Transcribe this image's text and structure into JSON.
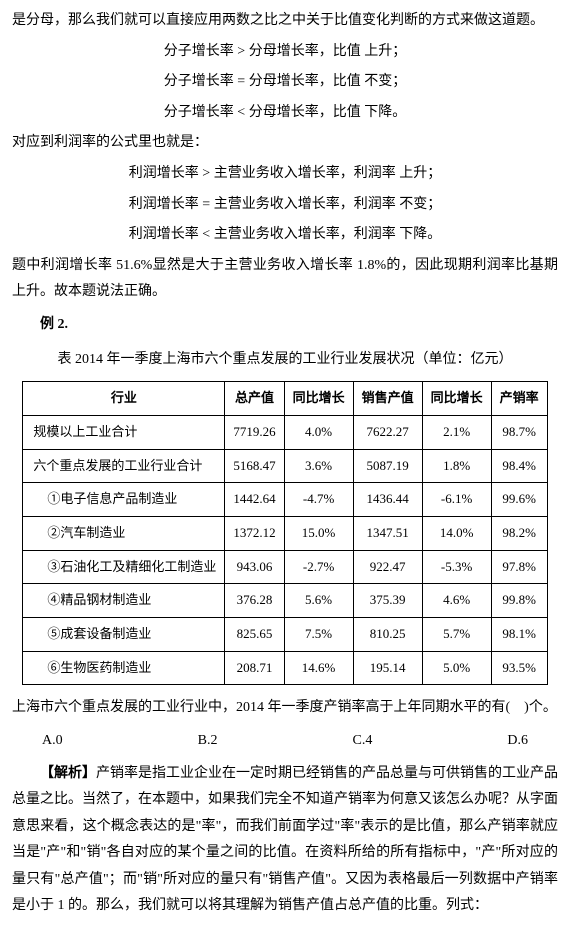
{
  "intro": "是分母，那么我们就可以直接应用两数之比之中关于比值变化判断的方式来做这道题。",
  "rules1": [
    "分子增长率 > 分母增长率，比值 上升；",
    "分子增长率 = 分母增长率，比值 不变；",
    "分子增长率 < 分母增长率，比值 下降。"
  ],
  "transition1": "对应到利润率的公式里也就是：",
  "rules2": [
    "利润增长率 > 主营业务收入增长率，利润率 上升；",
    "利润增长率 = 主营业务收入增长率，利润率 不变；",
    "利润增长率 < 主营业务收入增长率，利润率 下降。"
  ],
  "conclusion1": "题中利润增长率 51.6%显然是大于主营业务收入增长率 1.8%的，因此现期利润率比基期上升。故本题说法正确。",
  "example_label": "例 2.",
  "table_title": "表 2014 年一季度上海市六个重点发展的工业行业发展状况（单位：亿元）",
  "table": {
    "headers": [
      "行业",
      "总产值",
      "同比增长",
      "销售产值",
      "同比增长",
      "产销率"
    ],
    "rows": [
      [
        "规模以上工业合计",
        "7719.26",
        "4.0%",
        "7622.27",
        "2.1%",
        "98.7%"
      ],
      [
        "六个重点发展的工业行业合计",
        "5168.47",
        "3.6%",
        "5087.19",
        "1.8%",
        "98.4%"
      ],
      [
        "①电子信息产品制造业",
        "1442.64",
        "-4.7%",
        "1436.44",
        "-6.1%",
        "99.6%"
      ],
      [
        "②汽车制造业",
        "1372.12",
        "15.0%",
        "1347.51",
        "14.0%",
        "98.2%"
      ],
      [
        "③石油化工及精细化工制造业",
        "943.06",
        "-2.7%",
        "922.47",
        "-5.3%",
        "97.8%"
      ],
      [
        "④精品钢材制造业",
        "376.28",
        "5.6%",
        "375.39",
        "4.6%",
        "99.8%"
      ],
      [
        "⑤成套设备制造业",
        "825.65",
        "7.5%",
        "810.25",
        "5.7%",
        "98.1%"
      ],
      [
        "⑥生物医药制造业",
        "208.71",
        "14.6%",
        "195.14",
        "5.0%",
        "93.5%"
      ]
    ],
    "indented_start": 2
  },
  "question": "上海市六个重点发展的工业行业中，2014 年一季度产销率高于上年同期水平的有(　)个。",
  "options": {
    "a": "A.0",
    "b": "B.2",
    "c": "C.4",
    "d": "D.6"
  },
  "analysis_label": "【解析】",
  "analysis": "产销率是指工业企业在一定时期已经销售的产品总量与可供销售的工业产品总量之比。当然了，在本题中，如果我们完全不知道产销率为何意又该怎么办呢？从字面意思来看，这个概念表达的是\"率\"，而我们前面学过\"率\"表示的是比值，那么产销率就应当是\"产\"和\"销\"各自对应的某个量之间的比值。在资料所给的所有指标中，\"产\"所对应的量只有\"总产值\"；而\"销\"所对应的量只有\"销售产值\"。又因为表格最后一列数据中产销率是小于 1 的。那么，我们就可以将其理解为销售产值占总产值的比重。列式："
}
